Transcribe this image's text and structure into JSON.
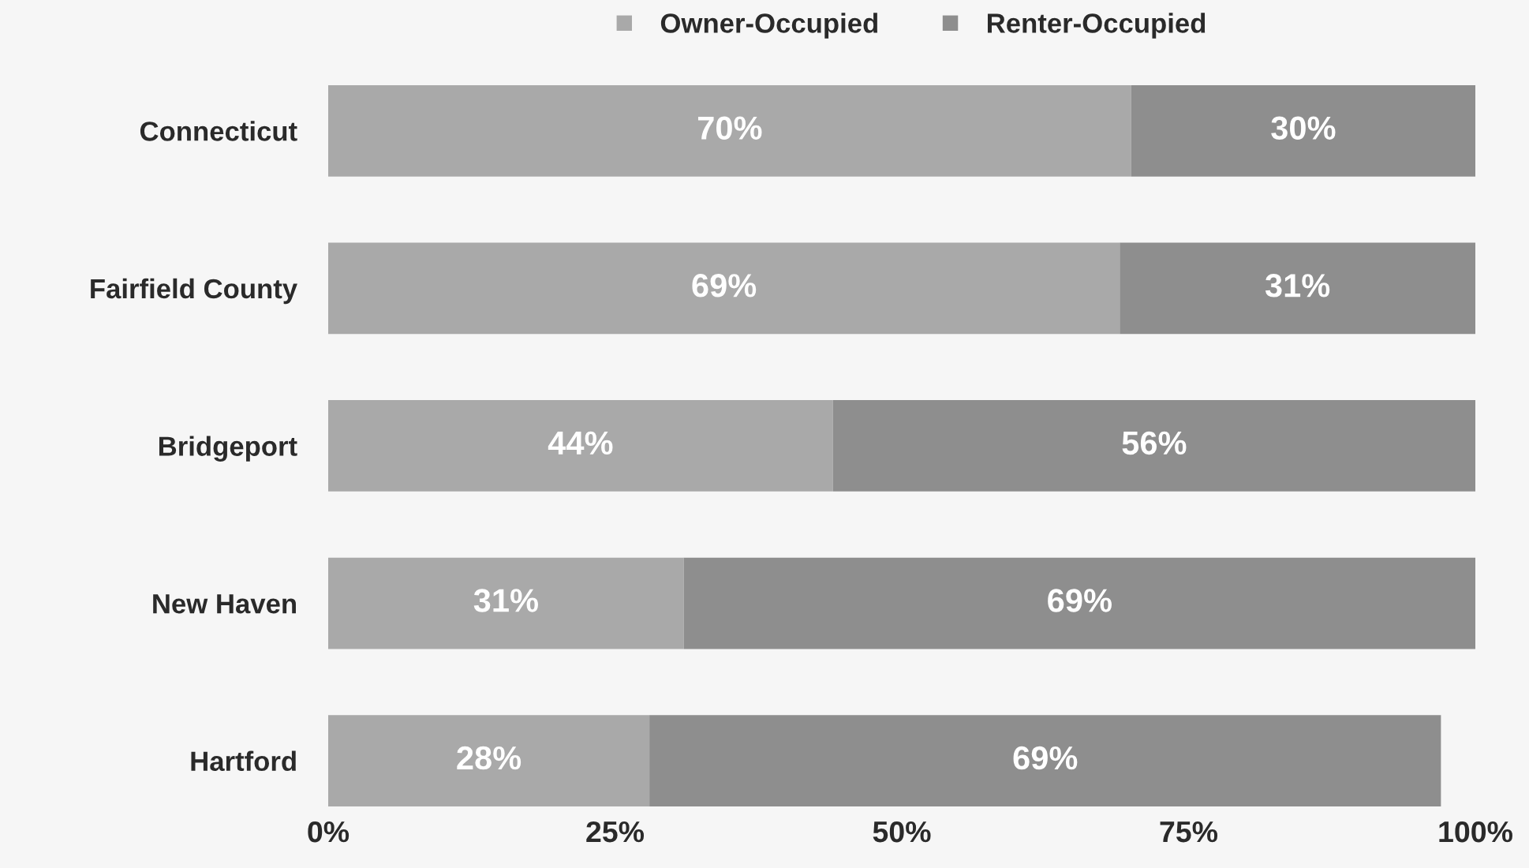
{
  "chart_data": {
    "type": "bar",
    "orientation": "horizontal",
    "stacked": true,
    "categories": [
      "Connecticut",
      "Fairfield County",
      "Bridgeport",
      "New Haven",
      "Hartford"
    ],
    "series": [
      {
        "name": "Owner-Occupied",
        "color": "#a9a9a9",
        "values": [
          70,
          69,
          44,
          31,
          28
        ],
        "value_labels": [
          "70%",
          "69%",
          "44%",
          "31%",
          "28%"
        ]
      },
      {
        "name": "Renter-Occupied",
        "color": "#8e8e8e",
        "values": [
          30,
          31,
          56,
          69,
          69
        ],
        "value_labels": [
          "30%",
          "31%",
          "56%",
          "69%",
          "69%"
        ]
      }
    ],
    "xlim": [
      0,
      100
    ],
    "xticks": [
      {
        "value": 0,
        "label": "0%"
      },
      {
        "value": 25,
        "label": "25%"
      },
      {
        "value": 50,
        "label": "50%"
      },
      {
        "value": 75,
        "label": "75%"
      },
      {
        "value": 100,
        "label": "100%"
      }
    ],
    "legend": "top"
  }
}
